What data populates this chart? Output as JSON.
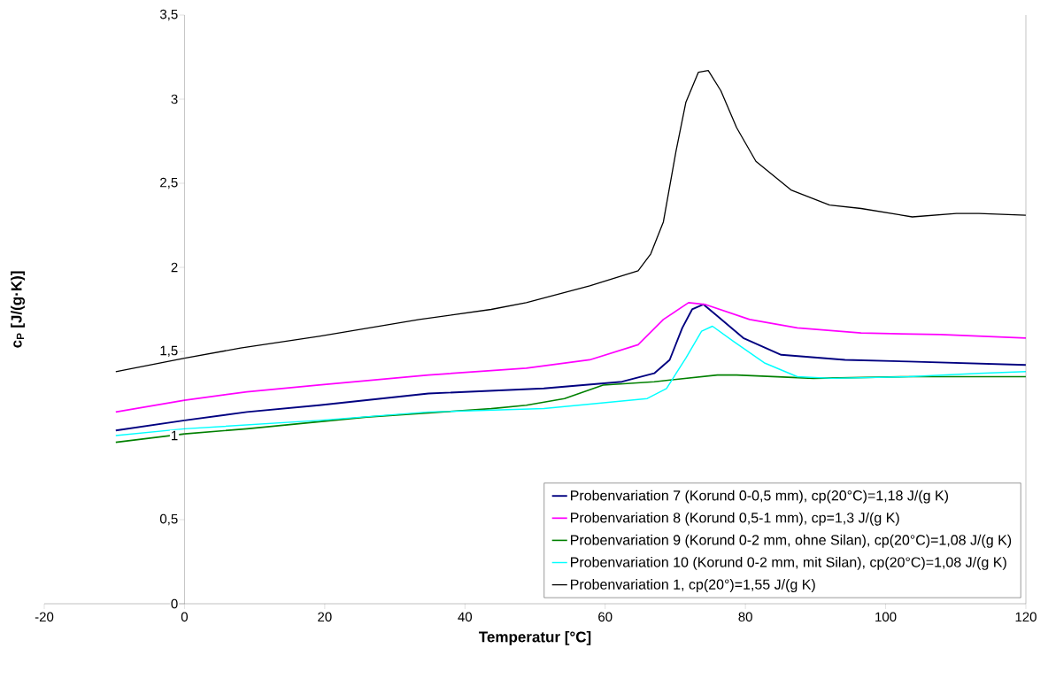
{
  "chart_data": {
    "type": "line",
    "xlabel": "**Temperatur [°C]**",
    "ylabel": "**c$_{P}$ [J/(g·K)]**",
    "xlim": [
      -20,
      120
    ],
    "xticks": [
      -20,
      0,
      20,
      40,
      60,
      80,
      100,
      120
    ],
    "ylim": [
      0,
      3.5
    ],
    "yticks": [
      0,
      {
        "value": 0.5,
        "label": "0,5"
      },
      1,
      {
        "value": 1.5,
        "label": "1,5"
      },
      2,
      {
        "value": 2.5,
        "label": "2,5"
      },
      3,
      {
        "value": 3.5,
        "label": "3,5"
      }
    ],
    "legend": "bottom right",
    "series": [
      {
        "name": "Probenvariation 7 (Korund 0-0,5 mm), cp(20°C)=1,18 J/(g K)",
        "color": "#000080",
        "x": [
          -9.8,
          0,
          8.9,
          19.2,
          34.8,
          51.25,
          62.4,
          67,
          69.2,
          71,
          72.4,
          74,
          76,
          79.7,
          85.1,
          94.2,
          103.3,
          120
        ],
        "values": [
          1.03,
          1.09,
          1.14,
          1.18,
          1.25,
          1.28,
          1.32,
          1.37,
          1.45,
          1.64,
          1.75,
          1.78,
          1.71,
          1.58,
          1.48,
          1.45,
          1.44,
          1.42
        ]
      },
      {
        "name": "Probenvariation 8 (Korund 0,5-1 mm), cp=1,3 J/(g K)",
        "color": "#ff00ff",
        "x": [
          -9.8,
          0,
          8.9,
          19.2,
          34.8,
          48.75,
          57.8,
          64.7,
          68.3,
          71.9,
          74.2,
          80.6,
          87.4,
          96.5,
          107.8,
          120
        ],
        "values": [
          1.14,
          1.21,
          1.26,
          1.3,
          1.36,
          1.4,
          1.45,
          1.54,
          1.69,
          1.79,
          1.78,
          1.69,
          1.64,
          1.61,
          1.6,
          1.58
        ]
      },
      {
        "name": "Probenvariation 9 (Korund 0-2 mm, ohne Silan), cp(20°C)=1,08 J/(g K)",
        "color": "#008000",
        "x": [
          -9.8,
          0,
          8.9,
          26,
          43.75,
          48.75,
          54.2,
          59.7,
          67,
          76,
          78.75,
          89.7,
          103.3,
          120
        ],
        "values": [
          0.96,
          1.01,
          1.04,
          1.11,
          1.16,
          1.18,
          1.22,
          1.3,
          1.32,
          1.36,
          1.36,
          1.34,
          1.35,
          1.35
        ]
      },
      {
        "name": "Probenvariation 10 (Korund 0-2 mm, mit Silan), cp(20°C)=1,08 J/(g K)",
        "color": "#00ffff",
        "x": [
          -9.8,
          0,
          19.2,
          34.8,
          51.25,
          66,
          68.75,
          71.5,
          73.75,
          75.3,
          78.3,
          82.8,
          87.4,
          92.4,
          103.3,
          113.3,
          120
        ],
        "values": [
          1.0,
          1.04,
          1.09,
          1.14,
          1.16,
          1.22,
          1.28,
          1.46,
          1.62,
          1.65,
          1.56,
          1.43,
          1.35,
          1.34,
          1.35,
          1.37,
          1.38
        ]
      },
      {
        "name": "Probenvariation 1, cp(20°)=1,55 J/(g K)",
        "color": "#000000",
        "x": [
          -9.8,
          0,
          8,
          19.2,
          33.5,
          43.75,
          48.75,
          57.8,
          64.7,
          66.5,
          68.3,
          70.1,
          71.5,
          73.3,
          74.7,
          76.5,
          78.75,
          81.5,
          86.5,
          92,
          96.5,
          103.8,
          110.1,
          113.3,
          120
        ],
        "values": [
          1.38,
          1.46,
          1.52,
          1.59,
          1.69,
          1.75,
          1.79,
          1.89,
          1.98,
          2.08,
          2.27,
          2.69,
          2.98,
          3.16,
          3.17,
          3.05,
          2.83,
          2.63,
          2.46,
          2.37,
          2.35,
          2.3,
          2.32,
          2.32,
          2.31
        ]
      }
    ]
  }
}
